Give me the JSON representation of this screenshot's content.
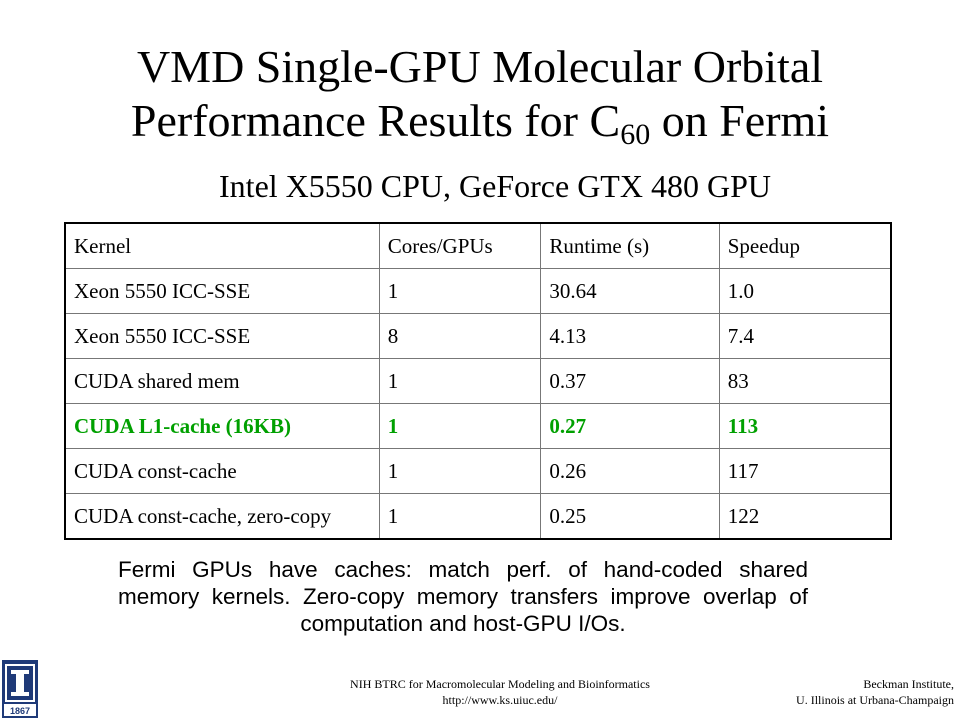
{
  "slide": {
    "title_line1": "VMD Single-GPU Molecular Orbital",
    "title_line2_pre": "Performance Results for C",
    "title_line2_sub": "60",
    "title_line2_post": " on Fermi",
    "subtitle": "Intel X5550 CPU, GeForce GTX 480 GPU"
  },
  "table": {
    "headers": [
      "Kernel",
      "Cores/GPUs",
      "Runtime (s)",
      "Speedup"
    ],
    "rows": [
      [
        "Xeon 5550 ICC-SSE",
        "1",
        "30.64",
        "1.0"
      ],
      [
        "Xeon 5550 ICC-SSE",
        "8",
        "4.13",
        "7.4"
      ],
      [
        "CUDA shared mem",
        "1",
        "0.37",
        "83"
      ],
      [
        "CUDA L1-cache (16KB)",
        "1",
        "0.27",
        "113"
      ],
      [
        "CUDA const-cache",
        "1",
        "0.26",
        "117"
      ],
      [
        "CUDA const-cache, zero-copy",
        "1",
        "0.25",
        "122"
      ]
    ],
    "highlight_row": 3,
    "highlight_color": "#00A000"
  },
  "body_text": "Fermi GPUs have caches: match perf. of hand-coded shared memory kernels. Zero-copy memory transfers improve overlap of computation and host-GPU I/Os.",
  "footer": {
    "center_line1": "NIH BTRC for Macromolecular Modeling and Bioinformatics",
    "center_line2": "http://www.ks.uiuc.edu/",
    "right_line1": "Beckman Institute,",
    "right_line2": "U. Illinois at Urbana-Champaign"
  },
  "logo": {
    "icon": "university-of-illinois-logo",
    "year": "1867",
    "color": "#1f3a78"
  }
}
